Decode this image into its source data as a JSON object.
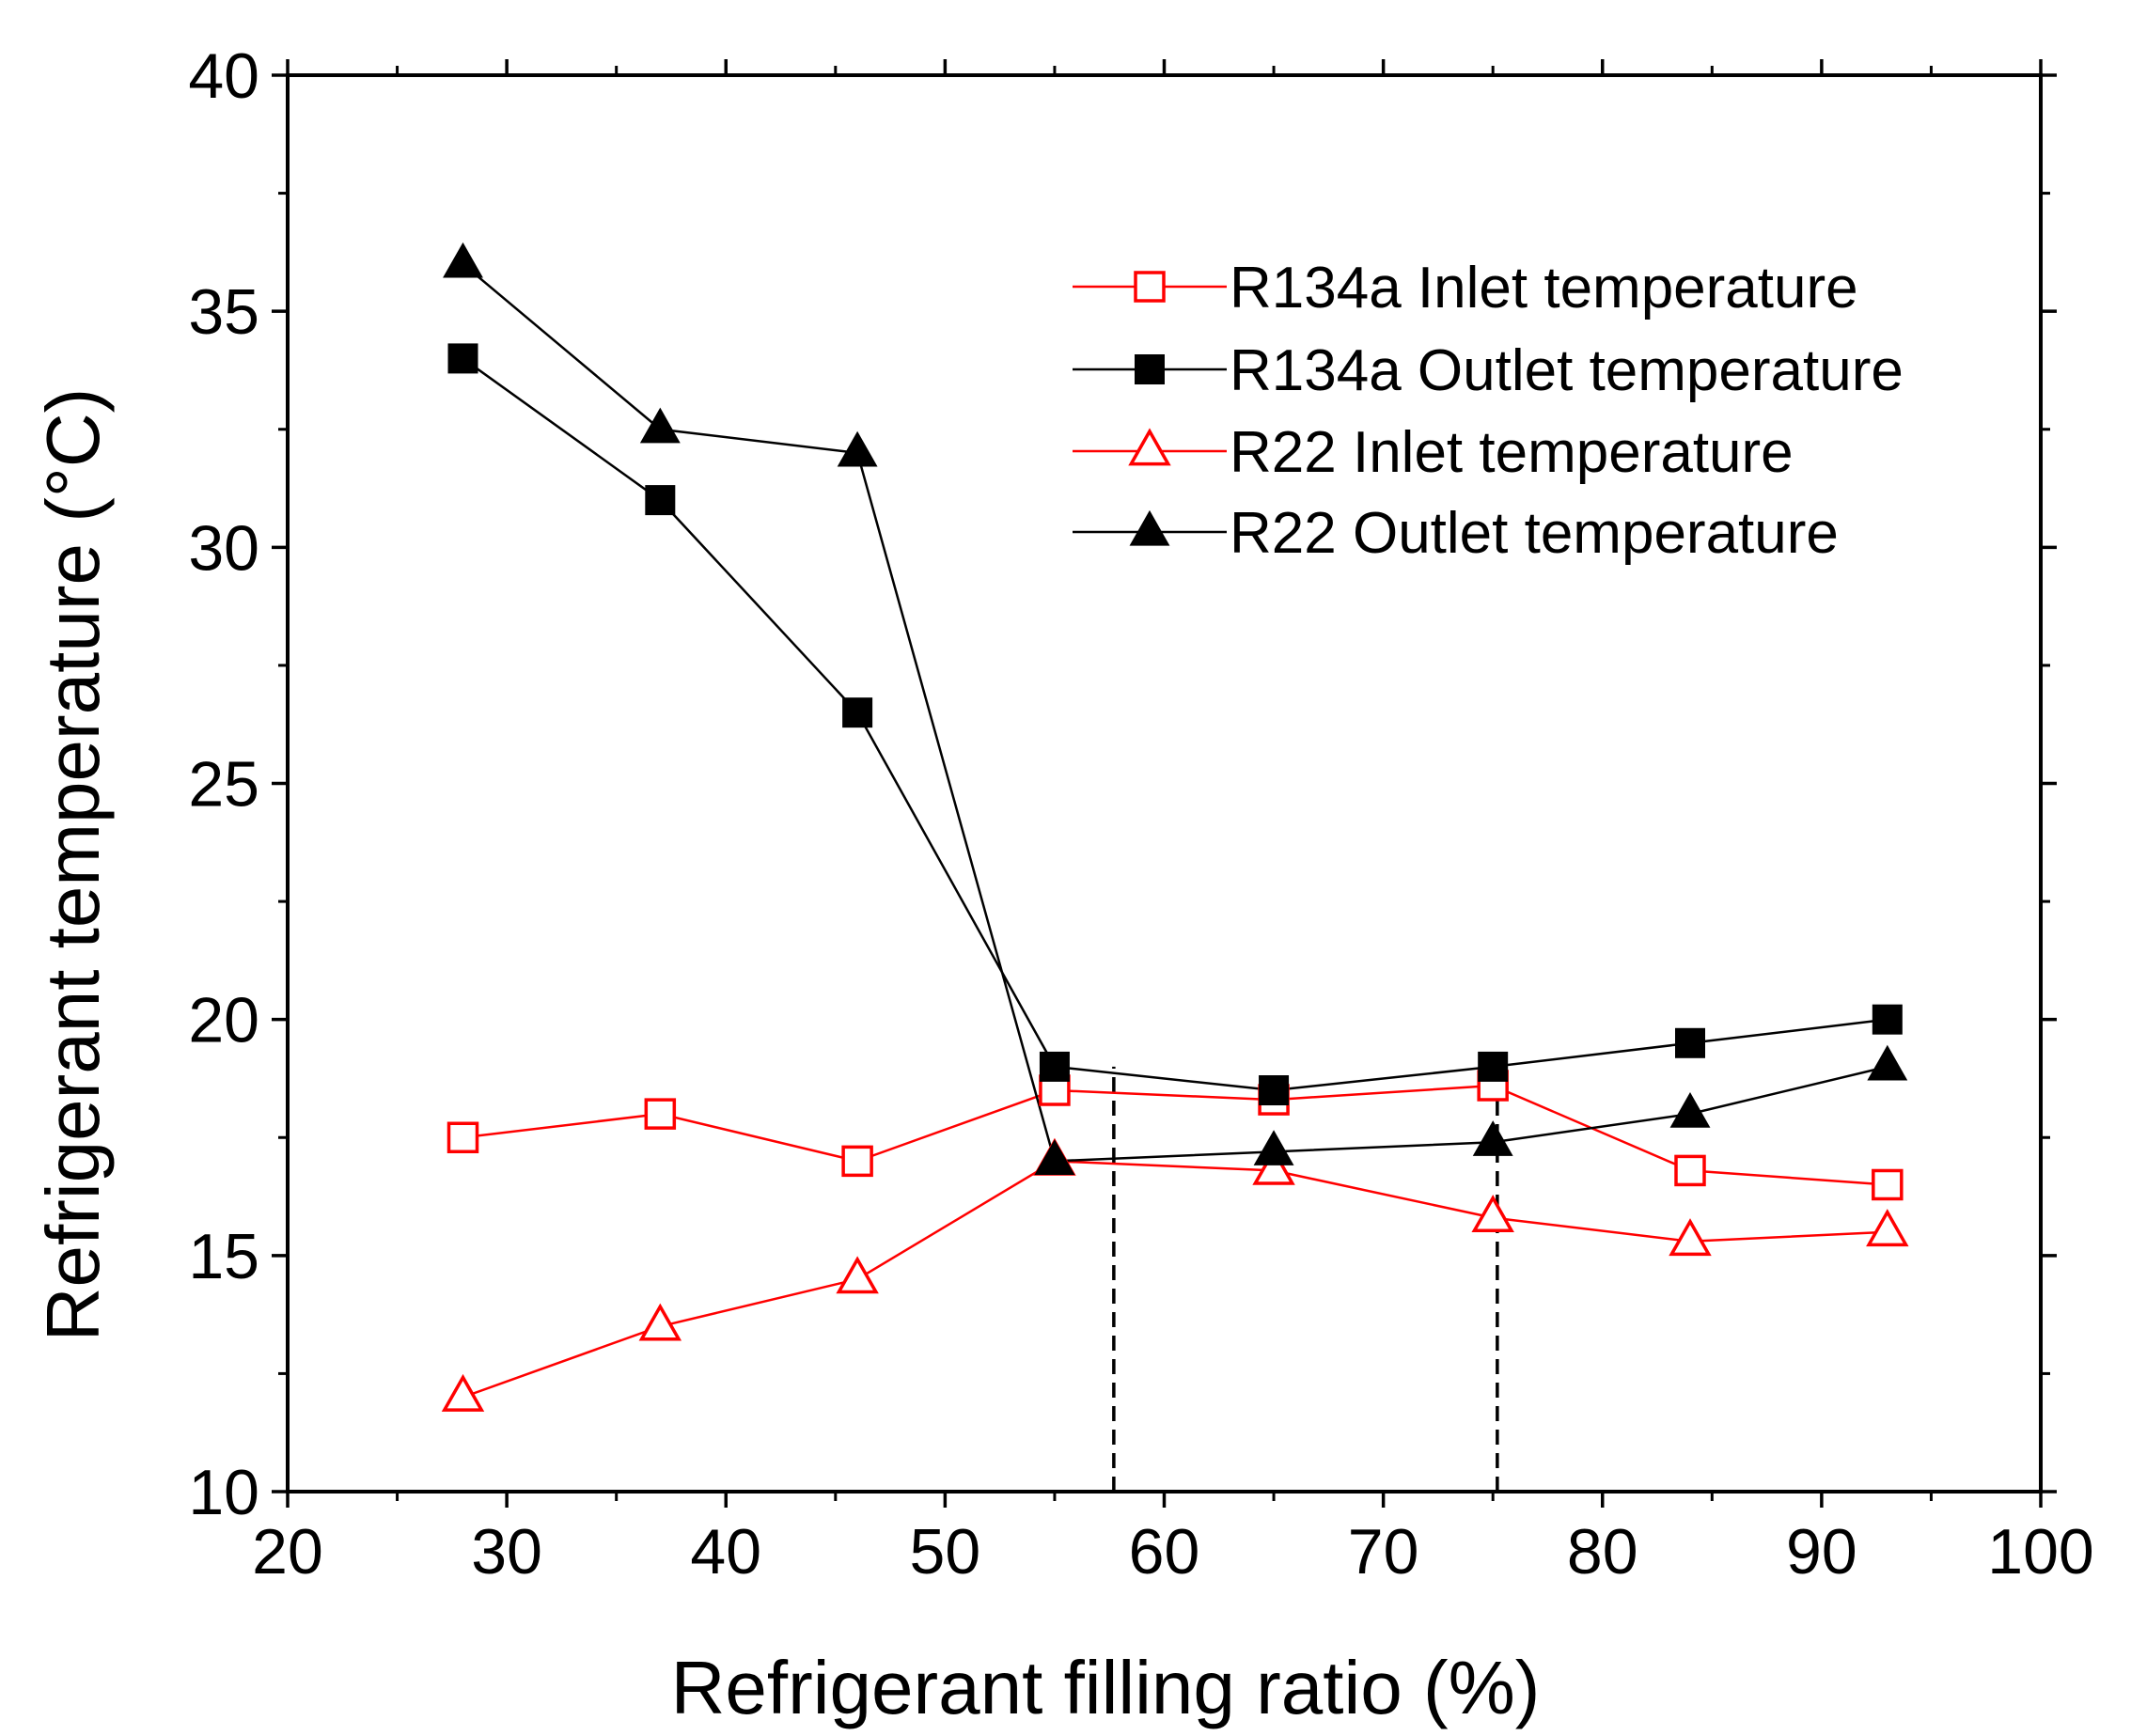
{
  "chart_data": {
    "type": "line",
    "title": "",
    "xlabel": "Refrigerant filling ratio (%)",
    "ylabel": "Refrigerant temperature (°C)",
    "xlim": [
      20,
      100
    ],
    "ylim": [
      10,
      40
    ],
    "xticks": [
      20,
      30,
      40,
      50,
      60,
      70,
      80,
      90,
      100
    ],
    "yticks": [
      10,
      15,
      20,
      25,
      30,
      35,
      40
    ],
    "grid": false,
    "legend_position": "top-right",
    "x": [
      28,
      37,
      46,
      55,
      65,
      75,
      84,
      93
    ],
    "series": [
      {
        "name": "R134a Inlet temperature",
        "color": "#ff0000",
        "marker": "open-square",
        "values": [
          17.5,
          18.0,
          17.0,
          18.5,
          18.3,
          18.6,
          16.8,
          16.5
        ]
      },
      {
        "name": "R134a Outlet temperature",
        "color": "#000000",
        "marker": "filled-square",
        "values": [
          34.0,
          31.0,
          26.5,
          19.0,
          18.5,
          19.0,
          19.5,
          20.0
        ]
      },
      {
        "name": "R22 Inlet temperature",
        "color": "#ff0000",
        "marker": "open-triangle",
        "values": [
          12.0,
          13.5,
          14.5,
          17.0,
          16.8,
          15.8,
          15.3,
          15.5
        ]
      },
      {
        "name": "R22 Outlet temperature",
        "color": "#000000",
        "marker": "filled-triangle",
        "values": [
          36.0,
          32.5,
          32.0,
          17.0,
          17.2,
          17.4,
          18.0,
          19.0
        ]
      }
    ],
    "reference_lines": [
      {
        "x": 57.7,
        "y_from": 10,
        "y_to": 19.0,
        "style": "dashed"
      },
      {
        "x": 75.2,
        "y_from": 10,
        "y_to": 18.6,
        "style": "dashed"
      }
    ]
  }
}
